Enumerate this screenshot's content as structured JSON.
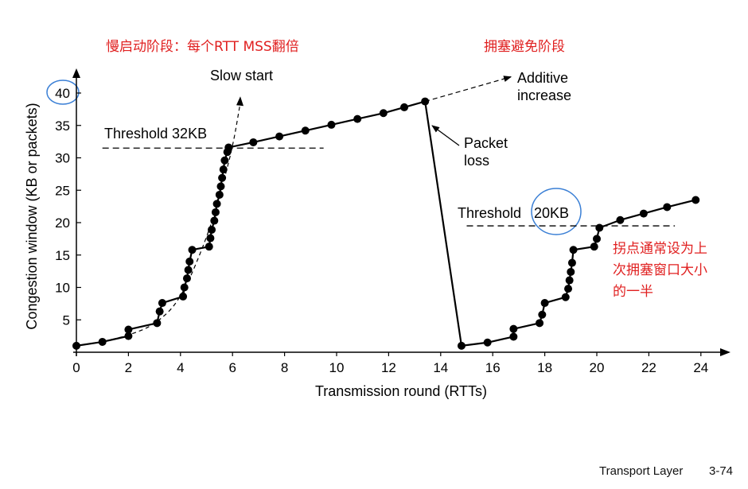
{
  "annotations": {
    "slow_start_cn": "慢启动阶段：每个RTT MSS翻倍",
    "congestion_avoidance_cn": "拥塞避免阶段",
    "turning_point_cn": [
      "拐点通常设为上",
      "次拥塞窗口大小",
      "的一半"
    ],
    "slow_start": "Slow start",
    "additive": [
      "Additive",
      "increase"
    ],
    "packet_loss": [
      "Packet",
      "loss"
    ],
    "threshold1": "Threshold 32KB",
    "threshold2_prefix": "Threshold",
    "threshold2_value": "20KB"
  },
  "footer": {
    "section": "Transport Layer",
    "page": "3-74"
  },
  "colors": {
    "accent_red": "#e02020",
    "circle_blue": "#3a7fd5",
    "line": "#000000"
  },
  "chart_data": {
    "type": "line",
    "xlabel": "Transmission round (RTTs)",
    "ylabel": "Congestion window (KB or packets)",
    "xlim": [
      0,
      24
    ],
    "ylim": [
      0,
      40
    ],
    "xticks": [
      0,
      2,
      4,
      6,
      8,
      10,
      12,
      14,
      16,
      18,
      20,
      22,
      24
    ],
    "yticks": [
      5,
      10,
      15,
      20,
      25,
      30,
      35,
      40
    ],
    "thresholds": [
      {
        "y": 31.5,
        "x_from": 1,
        "x_to": 9.5
      },
      {
        "y": 19.5,
        "x_from": 15,
        "x_to": 23
      }
    ],
    "series": [
      {
        "points": [
          [
            0,
            1
          ],
          [
            1,
            1.6
          ],
          [
            2,
            2.5
          ],
          [
            2,
            3.5
          ],
          [
            3.1,
            4.5
          ],
          [
            3.2,
            6.3
          ],
          [
            3.3,
            7.6
          ],
          [
            4.1,
            8.6
          ],
          [
            4.15,
            10.0
          ],
          [
            4.25,
            11.4
          ],
          [
            4.3,
            12.7
          ],
          [
            4.35,
            14.0
          ],
          [
            4.45,
            15.8
          ],
          [
            5.1,
            16.3
          ],
          [
            5.15,
            17.6
          ],
          [
            5.2,
            18.9
          ],
          [
            5.3,
            20.3
          ],
          [
            5.35,
            21.6
          ],
          [
            5.4,
            22.9
          ],
          [
            5.5,
            24.3
          ],
          [
            5.55,
            25.6
          ],
          [
            5.6,
            26.9
          ],
          [
            5.65,
            28.2
          ],
          [
            5.7,
            29.6
          ],
          [
            5.8,
            30.9
          ],
          [
            5.85,
            31.6
          ],
          [
            6.8,
            32.4
          ],
          [
            7.8,
            33.3
          ],
          [
            8.8,
            34.2
          ],
          [
            9.8,
            35.1
          ],
          [
            10.8,
            36.0
          ],
          [
            11.8,
            36.9
          ],
          [
            12.6,
            37.8
          ],
          [
            13.4,
            38.7
          ],
          [
            14.8,
            1.0
          ],
          [
            15.8,
            1.5
          ],
          [
            16.8,
            2.4
          ],
          [
            16.8,
            3.6
          ],
          [
            17.8,
            4.5
          ],
          [
            17.9,
            5.8
          ],
          [
            18.0,
            7.6
          ],
          [
            18.8,
            8.5
          ],
          [
            18.9,
            9.8
          ],
          [
            18.95,
            11.1
          ],
          [
            19.0,
            12.4
          ],
          [
            19.05,
            13.8
          ],
          [
            19.1,
            15.8
          ],
          [
            19.9,
            16.3
          ],
          [
            20.0,
            17.5
          ],
          [
            20.1,
            19.2
          ],
          [
            20.9,
            20.4
          ],
          [
            21.8,
            21.4
          ],
          [
            22.7,
            22.4
          ],
          [
            23.8,
            23.5
          ]
        ]
      }
    ],
    "slow_start_curve": [
      [
        0,
        1
      ],
      [
        1,
        1.6
      ],
      [
        2,
        2.6
      ],
      [
        3,
        4.2
      ],
      [
        4,
        8.0
      ],
      [
        5,
        17.5
      ],
      [
        5.5,
        24
      ],
      [
        6,
        31.5
      ],
      [
        6.3,
        38.5
      ]
    ],
    "additive_extension": [
      [
        13.4,
        38.7
      ],
      [
        16.7,
        42.5
      ]
    ]
  }
}
